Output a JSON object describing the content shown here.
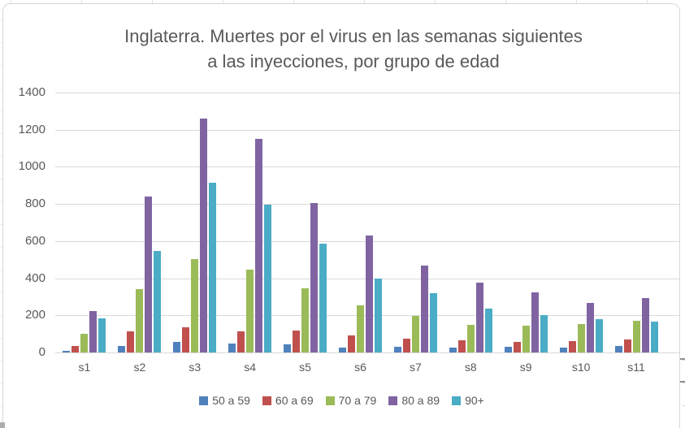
{
  "title": {
    "line1": "Inglaterra. Muertes por el virus en las semanas siguientes",
    "line2": "a las inyecciones, por grupo de edad"
  },
  "chart_data": {
    "type": "bar",
    "title": "Inglaterra. Muertes por el virus en las semanas siguientes a las inyecciones, por grupo de edad",
    "categories": [
      "s1",
      "s2",
      "s3",
      "s4",
      "s5",
      "s6",
      "s7",
      "s8",
      "s9",
      "s10",
      "s11"
    ],
    "series": [
      {
        "name": "50 a 59",
        "color": "#4F81BD",
        "values": [
          10,
          35,
          55,
          50,
          45,
          25,
          30,
          25,
          30,
          25,
          35
        ]
      },
      {
        "name": "60 a 69",
        "color": "#C0504D",
        "values": [
          35,
          115,
          135,
          115,
          120,
          90,
          75,
          65,
          55,
          60,
          70
        ]
      },
      {
        "name": "70 a 79",
        "color": "#9BBB59",
        "values": [
          100,
          340,
          505,
          445,
          345,
          255,
          195,
          150,
          145,
          155,
          170
        ]
      },
      {
        "name": "80 a 89",
        "color": "#8064A2",
        "values": [
          225,
          840,
          1260,
          1150,
          805,
          630,
          470,
          375,
          325,
          265,
          295
        ]
      },
      {
        "name": "90+",
        "color": "#4BACC6",
        "values": [
          185,
          545,
          915,
          795,
          585,
          400,
          320,
          235,
          200,
          180,
          165
        ]
      }
    ],
    "ylim": [
      0,
      1400
    ],
    "yticks": [
      0,
      200,
      400,
      600,
      800,
      1000,
      1200,
      1400
    ],
    "grid": true,
    "legend_position": "bottom",
    "colors": {
      "gridline": "#d9d9d9",
      "text": "#595959",
      "background": "#ffffff"
    }
  }
}
